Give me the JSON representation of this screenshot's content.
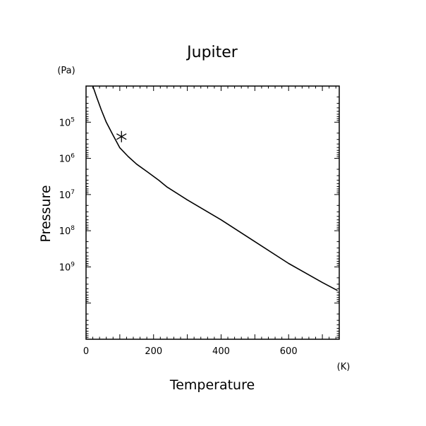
{
  "chart_data": {
    "type": "line",
    "title": "Jupiter",
    "xlabel": "Temperature",
    "ylabel": "Pressure",
    "x_unit": "(K)",
    "y_unit": "(Pa)",
    "xlim": [
      0,
      750
    ],
    "ylim": [
      100000000000,
      10000
    ],
    "y_scale": "log",
    "y_inverted": true,
    "x_ticks": [
      0,
      200,
      400,
      600
    ],
    "x_tick_labels": [
      "0",
      "200",
      "400",
      "600"
    ],
    "y_ticks": [
      100000,
      1000000,
      10000000,
      100000000,
      1000000000
    ],
    "y_tick_labels": [
      {
        "base": "10",
        "exp": "5"
      },
      {
        "base": "10",
        "exp": "6"
      },
      {
        "base": "10",
        "exp": "7"
      },
      {
        "base": "10",
        "exp": "8"
      },
      {
        "base": "10",
        "exp": "9"
      }
    ],
    "grid": false,
    "series": [
      {
        "x": [
          20,
          32,
          45,
          60,
          80,
          100,
          125,
          150,
          180,
          215,
          240,
          300,
          400,
          500,
          600,
          700,
          745
        ],
        "y": [
          10000,
          21000,
          45000,
          100000,
          230000,
          510000,
          890000,
          1450000,
          2300000,
          4000000,
          6200000,
          14000000,
          50000000,
          200000000,
          800000000,
          2700000000,
          4500000000
        ]
      }
    ],
    "markers": [
      {
        "symbol": "*",
        "x": 105,
        "y": 250000
      }
    ]
  }
}
